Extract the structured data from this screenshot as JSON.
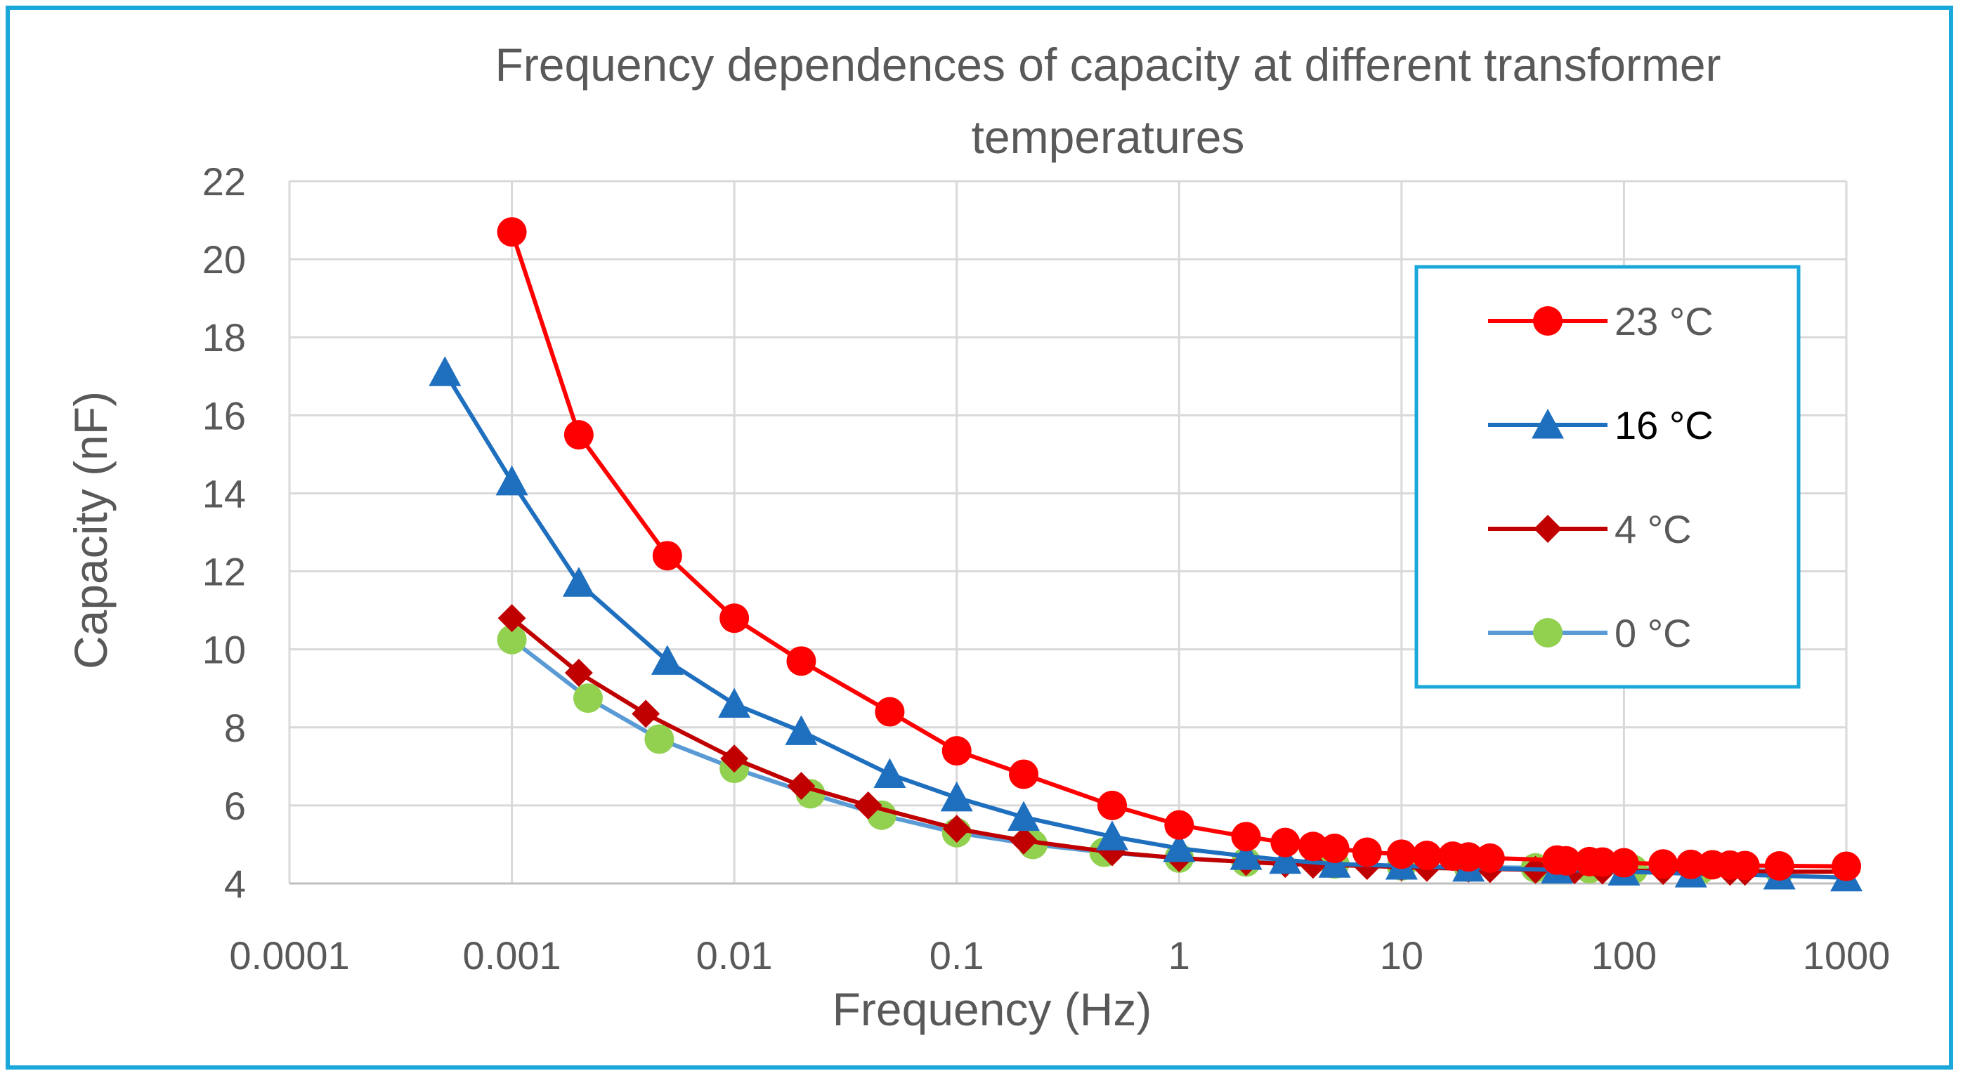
{
  "chart_data": {
    "type": "line",
    "title": "Frequency dependences of capacity at different transformer temperatures",
    "title_lines": [
      "Frequency dependences of capacity at different transformer",
      "temperatures"
    ],
    "xlabel": "Frequency (Hz)",
    "ylabel": "Capacity (nF)",
    "x_scale": "log",
    "xlim": [
      0.0001,
      1000
    ],
    "ylim": [
      4,
      22
    ],
    "x_ticks": [
      0.0001,
      0.001,
      0.01,
      0.1,
      1,
      10,
      100,
      1000
    ],
    "x_tick_labels": [
      "0.0001",
      "0.001",
      "0.01",
      "0.1",
      "1",
      "10",
      "100",
      "1000"
    ],
    "y_ticks": [
      4,
      6,
      8,
      10,
      12,
      14,
      16,
      18,
      20,
      22
    ],
    "y_tick_labels": [
      "4",
      "6",
      "8",
      "10",
      "12",
      "14",
      "16",
      "18",
      "20",
      "22"
    ],
    "grid": true,
    "legend_position": "right",
    "series": [
      {
        "name": "23 °C",
        "color": "#ff0000",
        "marker": "circle",
        "x": [
          0.001,
          0.002,
          0.005,
          0.01,
          0.02,
          0.05,
          0.1,
          0.2,
          0.5,
          1,
          2,
          3,
          4,
          5,
          7,
          10,
          13,
          17,
          20,
          25,
          50,
          55,
          70,
          80,
          100,
          150,
          200,
          250,
          300,
          350,
          500,
          1000
        ],
        "y": [
          20.7,
          15.5,
          12.4,
          10.8,
          9.7,
          8.4,
          7.4,
          6.8,
          6.0,
          5.5,
          5.2,
          5.05,
          4.95,
          4.9,
          4.8,
          4.75,
          4.72,
          4.7,
          4.68,
          4.65,
          4.6,
          4.58,
          4.56,
          4.55,
          4.53,
          4.5,
          4.49,
          4.48,
          4.47,
          4.46,
          4.45,
          4.44
        ]
      },
      {
        "name": "16 °C",
        "color": "#1f6fbf",
        "marker": "triangle",
        "x": [
          0.0005,
          0.001,
          0.002,
          0.005,
          0.01,
          0.02,
          0.05,
          0.1,
          0.2,
          0.5,
          1,
          2,
          3,
          5,
          10,
          20,
          50,
          100,
          200,
          500,
          1000
        ],
        "y": [
          17.1,
          14.3,
          11.7,
          9.7,
          8.6,
          7.9,
          6.8,
          6.2,
          5.7,
          5.2,
          4.9,
          4.7,
          4.6,
          4.5,
          4.45,
          4.4,
          4.35,
          4.3,
          4.25,
          4.2,
          4.15
        ]
      },
      {
        "name": "4 °C",
        "color": "#c00000",
        "marker": "diamond",
        "x": [
          0.001,
          0.002,
          0.004,
          0.01,
          0.02,
          0.04,
          0.1,
          0.2,
          0.5,
          1,
          2,
          3,
          4,
          7,
          10,
          13,
          20,
          25,
          40,
          60,
          80,
          100,
          150,
          200,
          300,
          350,
          500,
          1000
        ],
        "y": [
          10.8,
          9.4,
          8.35,
          7.2,
          6.5,
          6.0,
          5.4,
          5.1,
          4.8,
          4.65,
          4.55,
          4.5,
          4.48,
          4.45,
          4.42,
          4.4,
          4.38,
          4.37,
          4.35,
          4.34,
          4.33,
          4.33,
          4.32,
          4.31,
          4.3,
          4.3,
          4.3,
          4.3
        ]
      },
      {
        "name": "0 °C",
        "color": "#5b9bd5",
        "marker_color": "#92d050",
        "marker": "circle",
        "x": [
          0.001,
          0.0022,
          0.0046,
          0.01,
          0.022,
          0.046,
          0.1,
          0.22,
          0.46,
          1,
          2,
          5,
          10,
          20,
          40,
          70,
          110,
          220,
          500
        ],
        "y": [
          10.25,
          8.75,
          7.7,
          6.95,
          6.3,
          5.75,
          5.3,
          5.0,
          4.8,
          4.65,
          4.55,
          4.5,
          4.45,
          4.42,
          4.4,
          4.38,
          4.36,
          4.35,
          4.33
        ]
      }
    ]
  }
}
